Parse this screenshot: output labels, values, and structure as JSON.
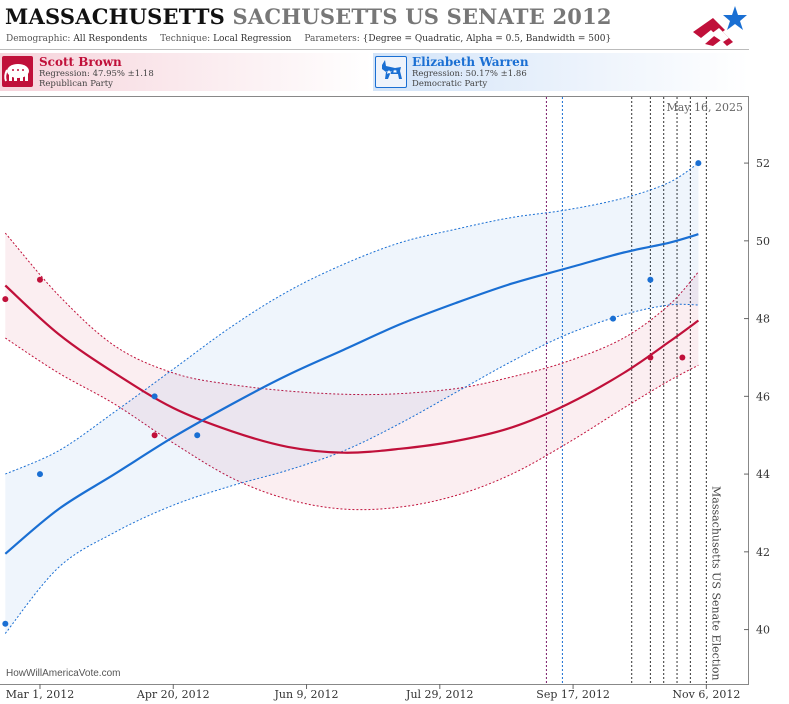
{
  "header": {
    "title_main": "MASSACHUSETTS",
    "title_sub": "SACHUSETTS US SENATE 2012",
    "demographic_label": "Demographic:",
    "demographic_value": "All Respondents",
    "technique_label": "Technique:",
    "technique_value": "Local Regression",
    "parameters_label": "Parameters:",
    "parameters_value": "{Degree = Quadratic, Alpha = 0.5, Bandwidth = 500}"
  },
  "candidates": {
    "republican": {
      "name": "Scott Brown",
      "regression": "Regression: 47.95% ±1.18",
      "party": "Republican Party",
      "color": "#c0103a"
    },
    "democrat": {
      "name": "Elizabeth Warren",
      "regression": "Regression: 50.17% ±1.86",
      "party": "Democratic Party",
      "color": "#1a6fd3"
    }
  },
  "credit": "HowWillAmericaVote.com",
  "chart_data": {
    "type": "scatter",
    "date_label": "May 16, 2025",
    "event_label": "Massachusetts US Senate Election",
    "x_tick_labels": [
      "Mar 1, 2012",
      "Apr 20, 2012",
      "Jun 9, 2012",
      "Jul 29, 2012",
      "Sep 17, 2012",
      "Nov 6, 2012"
    ],
    "x_tick_dates": [
      "2012-03-01",
      "2012-04-20",
      "2012-06-09",
      "2012-07-29",
      "2012-09-17",
      "2012-11-06"
    ],
    "xlim": [
      "2012-02-15",
      "2012-11-22"
    ],
    "y_ticks": [
      40,
      42,
      44,
      46,
      48,
      50,
      52
    ],
    "ylim": [
      38.6,
      53.7
    ],
    "poll_dates": [
      {
        "date": "2012-09-07",
        "color": "#7a1a6a"
      },
      {
        "date": "2012-09-13",
        "color": "#1a6fd3"
      },
      {
        "date": "2012-10-09",
        "color": "#333333"
      },
      {
        "date": "2012-10-16",
        "color": "#333333"
      },
      {
        "date": "2012-10-21",
        "color": "#333333"
      },
      {
        "date": "2012-10-26",
        "color": "#333333"
      },
      {
        "date": "2012-10-31",
        "color": "#333333"
      },
      {
        "date": "2012-11-06",
        "color": "#333333"
      }
    ],
    "series": [
      {
        "name": "Scott Brown",
        "color": "#c0103a",
        "points": [
          {
            "x": "2012-02-17",
            "y": 48.5
          },
          {
            "x": "2012-03-01",
            "y": 49.0
          },
          {
            "x": "2012-04-13",
            "y": 45.0
          },
          {
            "x": "2012-10-16",
            "y": 47.0
          },
          {
            "x": "2012-10-28",
            "y": 47.0
          }
        ],
        "regression": [
          {
            "x": "2012-02-17",
            "y": 48.85
          },
          {
            "x": "2012-03-08",
            "y": 47.6
          },
          {
            "x": "2012-03-29",
            "y": 46.6
          },
          {
            "x": "2012-04-20",
            "y": 45.7
          },
          {
            "x": "2012-05-12",
            "y": 45.1
          },
          {
            "x": "2012-06-02",
            "y": 44.7
          },
          {
            "x": "2012-06-23",
            "y": 44.55
          },
          {
            "x": "2012-07-14",
            "y": 44.65
          },
          {
            "x": "2012-08-04",
            "y": 44.85
          },
          {
            "x": "2012-08-25",
            "y": 45.2
          },
          {
            "x": "2012-09-15",
            "y": 45.8
          },
          {
            "x": "2012-10-06",
            "y": 46.6
          },
          {
            "x": "2012-10-23",
            "y": 47.4
          },
          {
            "x": "2012-11-03",
            "y": 47.95
          }
        ],
        "upper": [
          {
            "x": "2012-02-17",
            "y": 50.2
          },
          {
            "x": "2012-03-08",
            "y": 48.6
          },
          {
            "x": "2012-03-29",
            "y": 47.3
          },
          {
            "x": "2012-04-20",
            "y": 46.6
          },
          {
            "x": "2012-05-12",
            "y": 46.3
          },
          {
            "x": "2012-06-09",
            "y": 46.1
          },
          {
            "x": "2012-07-07",
            "y": 46.05
          },
          {
            "x": "2012-08-04",
            "y": 46.2
          },
          {
            "x": "2012-08-25",
            "y": 46.5
          },
          {
            "x": "2012-09-15",
            "y": 46.9
          },
          {
            "x": "2012-10-06",
            "y": 47.5
          },
          {
            "x": "2012-10-23",
            "y": 48.35
          },
          {
            "x": "2012-11-03",
            "y": 49.2
          }
        ],
        "lower": [
          {
            "x": "2012-02-17",
            "y": 47.5
          },
          {
            "x": "2012-03-08",
            "y": 46.6
          },
          {
            "x": "2012-03-29",
            "y": 45.8
          },
          {
            "x": "2012-04-20",
            "y": 44.8
          },
          {
            "x": "2012-05-12",
            "y": 43.9
          },
          {
            "x": "2012-06-02",
            "y": 43.35
          },
          {
            "x": "2012-06-23",
            "y": 43.1
          },
          {
            "x": "2012-07-14",
            "y": 43.15
          },
          {
            "x": "2012-08-04",
            "y": 43.45
          },
          {
            "x": "2012-08-25",
            "y": 44.0
          },
          {
            "x": "2012-09-15",
            "y": 44.8
          },
          {
            "x": "2012-10-06",
            "y": 45.7
          },
          {
            "x": "2012-10-23",
            "y": 46.4
          },
          {
            "x": "2012-11-03",
            "y": 46.8
          }
        ]
      },
      {
        "name": "Elizabeth Warren",
        "color": "#1a6fd3",
        "points": [
          {
            "x": "2012-02-17",
            "y": 40.15
          },
          {
            "x": "2012-03-01",
            "y": 44.0
          },
          {
            "x": "2012-04-13",
            "y": 46.0
          },
          {
            "x": "2012-04-29",
            "y": 45.0
          },
          {
            "x": "2012-10-02",
            "y": 48.0
          },
          {
            "x": "2012-10-16",
            "y": 49.0
          },
          {
            "x": "2012-11-03",
            "y": 52.0
          }
        ],
        "regression": [
          {
            "x": "2012-02-17",
            "y": 41.95
          },
          {
            "x": "2012-03-08",
            "y": 43.1
          },
          {
            "x": "2012-03-29",
            "y": 44.0
          },
          {
            "x": "2012-04-20",
            "y": 44.95
          },
          {
            "x": "2012-05-12",
            "y": 45.8
          },
          {
            "x": "2012-06-02",
            "y": 46.55
          },
          {
            "x": "2012-06-23",
            "y": 47.2
          },
          {
            "x": "2012-07-14",
            "y": 47.85
          },
          {
            "x": "2012-08-04",
            "y": 48.4
          },
          {
            "x": "2012-08-25",
            "y": 48.9
          },
          {
            "x": "2012-09-15",
            "y": 49.3
          },
          {
            "x": "2012-10-06",
            "y": 49.7
          },
          {
            "x": "2012-10-23",
            "y": 49.95
          },
          {
            "x": "2012-11-03",
            "y": 50.17
          }
        ],
        "upper": [
          {
            "x": "2012-02-17",
            "y": 44.0
          },
          {
            "x": "2012-03-08",
            "y": 44.6
          },
          {
            "x": "2012-03-29",
            "y": 45.6
          },
          {
            "x": "2012-04-20",
            "y": 46.7
          },
          {
            "x": "2012-05-12",
            "y": 47.8
          },
          {
            "x": "2012-06-02",
            "y": 48.7
          },
          {
            "x": "2012-06-23",
            "y": 49.4
          },
          {
            "x": "2012-07-14",
            "y": 49.95
          },
          {
            "x": "2012-08-04",
            "y": 50.3
          },
          {
            "x": "2012-08-25",
            "y": 50.6
          },
          {
            "x": "2012-09-15",
            "y": 50.8
          },
          {
            "x": "2012-10-06",
            "y": 51.1
          },
          {
            "x": "2012-10-23",
            "y": 51.5
          },
          {
            "x": "2012-11-03",
            "y": 52.0
          }
        ],
        "lower": [
          {
            "x": "2012-02-17",
            "y": 39.9
          },
          {
            "x": "2012-03-08",
            "y": 41.6
          },
          {
            "x": "2012-03-29",
            "y": 42.5
          },
          {
            "x": "2012-04-20",
            "y": 43.2
          },
          {
            "x": "2012-05-12",
            "y": 43.7
          },
          {
            "x": "2012-06-02",
            "y": 44.1
          },
          {
            "x": "2012-06-23",
            "y": 44.6
          },
          {
            "x": "2012-07-14",
            "y": 45.3
          },
          {
            "x": "2012-08-04",
            "y": 46.1
          },
          {
            "x": "2012-08-25",
            "y": 46.9
          },
          {
            "x": "2012-09-15",
            "y": 47.6
          },
          {
            "x": "2012-10-06",
            "y": 48.1
          },
          {
            "x": "2012-10-23",
            "y": 48.35
          },
          {
            "x": "2012-11-03",
            "y": 48.35
          }
        ]
      }
    ]
  }
}
